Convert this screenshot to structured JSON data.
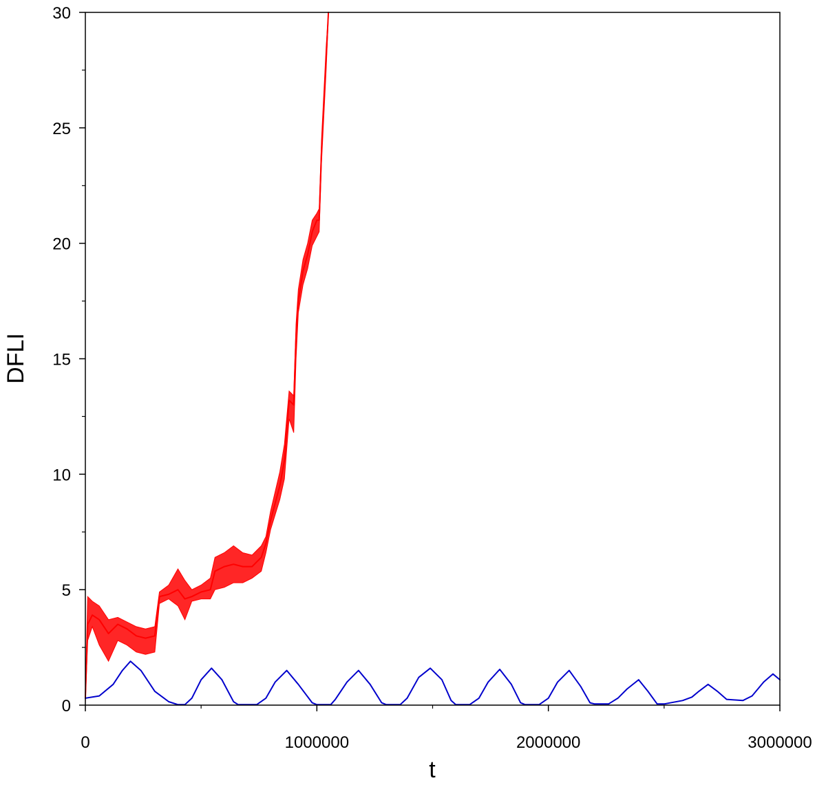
{
  "chart_data": {
    "type": "line",
    "title": "",
    "xlabel": "t",
    "ylabel": "DFLI",
    "xlim": [
      0,
      3000000
    ],
    "ylim": [
      0,
      30
    ],
    "x_major_ticks": [
      0,
      1000000,
      2000000,
      3000000
    ],
    "x_tick_labels": [
      "0",
      "1000000",
      "2000000",
      "3000000"
    ],
    "x_minor_ticks": [
      500000,
      1500000,
      2500000
    ],
    "y_major_ticks": [
      0,
      5,
      10,
      15,
      20,
      25,
      30
    ],
    "y_tick_labels": [
      "0",
      "5",
      "10",
      "15",
      "20",
      "25",
      "30"
    ],
    "y_minor_ticks": [
      2.5,
      7.5,
      12.5,
      17.5,
      22.5,
      27.5
    ],
    "grid": false,
    "legend": "none",
    "series": [
      {
        "color": "#ff0000",
        "x": [
          0,
          10000,
          30000,
          60000,
          100000,
          140000,
          180000,
          220000,
          260000,
          300000,
          320000,
          360000,
          400000,
          430000,
          460000,
          500000,
          540000,
          560000,
          600000,
          640000,
          680000,
          720000,
          760000,
          780000,
          800000,
          840000,
          860000,
          880000,
          900000,
          910000,
          920000,
          940000,
          960000,
          980000,
          1000000,
          1010000,
          1020000,
          1040000,
          1050000
        ],
        "y": [
          0.3,
          3.5,
          3.9,
          3.7,
          3.1,
          3.5,
          3.3,
          3.0,
          2.9,
          3.0,
          4.7,
          4.8,
          5.0,
          4.6,
          4.7,
          4.9,
          5.0,
          5.8,
          6.0,
          6.1,
          6.0,
          6.0,
          6.4,
          7.0,
          8.0,
          9.5,
          10.6,
          13.2,
          13.0,
          16.0,
          17.5,
          18.8,
          19.5,
          20.5,
          21.0,
          21.0,
          24.0,
          28.0,
          30.0
        ],
        "y_low": [
          0.1,
          2.8,
          3.4,
          2.6,
          1.9,
          2.8,
          2.6,
          2.3,
          2.2,
          2.3,
          4.4,
          4.6,
          4.3,
          3.7,
          4.5,
          4.6,
          4.6,
          5.0,
          5.1,
          5.3,
          5.3,
          5.5,
          5.8,
          6.6,
          7.6,
          8.9,
          9.8,
          12.4,
          11.8,
          15.0,
          17.0,
          18.2,
          18.9,
          19.9,
          20.3,
          20.5,
          23.5,
          27.5,
          29.8
        ],
        "y_high": [
          0.5,
          4.7,
          4.5,
          4.3,
          3.7,
          3.8,
          3.6,
          3.4,
          3.3,
          3.4,
          4.9,
          5.2,
          5.9,
          5.4,
          5.0,
          5.2,
          5.5,
          6.4,
          6.6,
          6.9,
          6.6,
          6.5,
          6.9,
          7.3,
          8.4,
          10.1,
          11.3,
          13.6,
          13.4,
          16.5,
          18.0,
          19.3,
          20.0,
          21.0,
          21.3,
          21.5,
          24.5,
          28.5,
          30.0
        ]
      },
      {
        "color": "#0000cc",
        "x": [
          0,
          60000,
          120000,
          160000,
          195000,
          240000,
          300000,
          360000,
          400000,
          430000,
          460000,
          500000,
          545000,
          590000,
          640000,
          660000,
          720000,
          740000,
          780000,
          820000,
          870000,
          920000,
          980000,
          1000000,
          1060000,
          1080000,
          1130000,
          1180000,
          1230000,
          1280000,
          1300000,
          1360000,
          1390000,
          1440000,
          1490000,
          1540000,
          1580000,
          1600000,
          1660000,
          1700000,
          1740000,
          1790000,
          1840000,
          1880000,
          1900000,
          1960000,
          2000000,
          2040000,
          2090000,
          2140000,
          2180000,
          2200000,
          2260000,
          2300000,
          2340000,
          2390000,
          2430000,
          2470000,
          2500000,
          2580000,
          2620000,
          2650000,
          2690000,
          2730000,
          2770000,
          2840000,
          2880000,
          2930000,
          2970000,
          3000000
        ],
        "y": [
          0.3,
          0.4,
          0.9,
          1.5,
          1.9,
          1.5,
          0.6,
          0.15,
          0.02,
          0.02,
          0.3,
          1.1,
          1.6,
          1.1,
          0.15,
          0.02,
          0.02,
          0.02,
          0.3,
          1.0,
          1.5,
          0.9,
          0.1,
          0.02,
          0.02,
          0.25,
          1.0,
          1.5,
          0.9,
          0.1,
          0.02,
          0.02,
          0.3,
          1.2,
          1.6,
          1.1,
          0.2,
          0.02,
          0.02,
          0.3,
          1.0,
          1.55,
          0.9,
          0.1,
          0.02,
          0.02,
          0.3,
          1.0,
          1.5,
          0.8,
          0.1,
          0.05,
          0.05,
          0.3,
          0.7,
          1.1,
          0.6,
          0.05,
          0.05,
          0.2,
          0.35,
          0.6,
          0.9,
          0.6,
          0.25,
          0.2,
          0.4,
          1.0,
          1.35,
          1.1
        ]
      }
    ]
  }
}
